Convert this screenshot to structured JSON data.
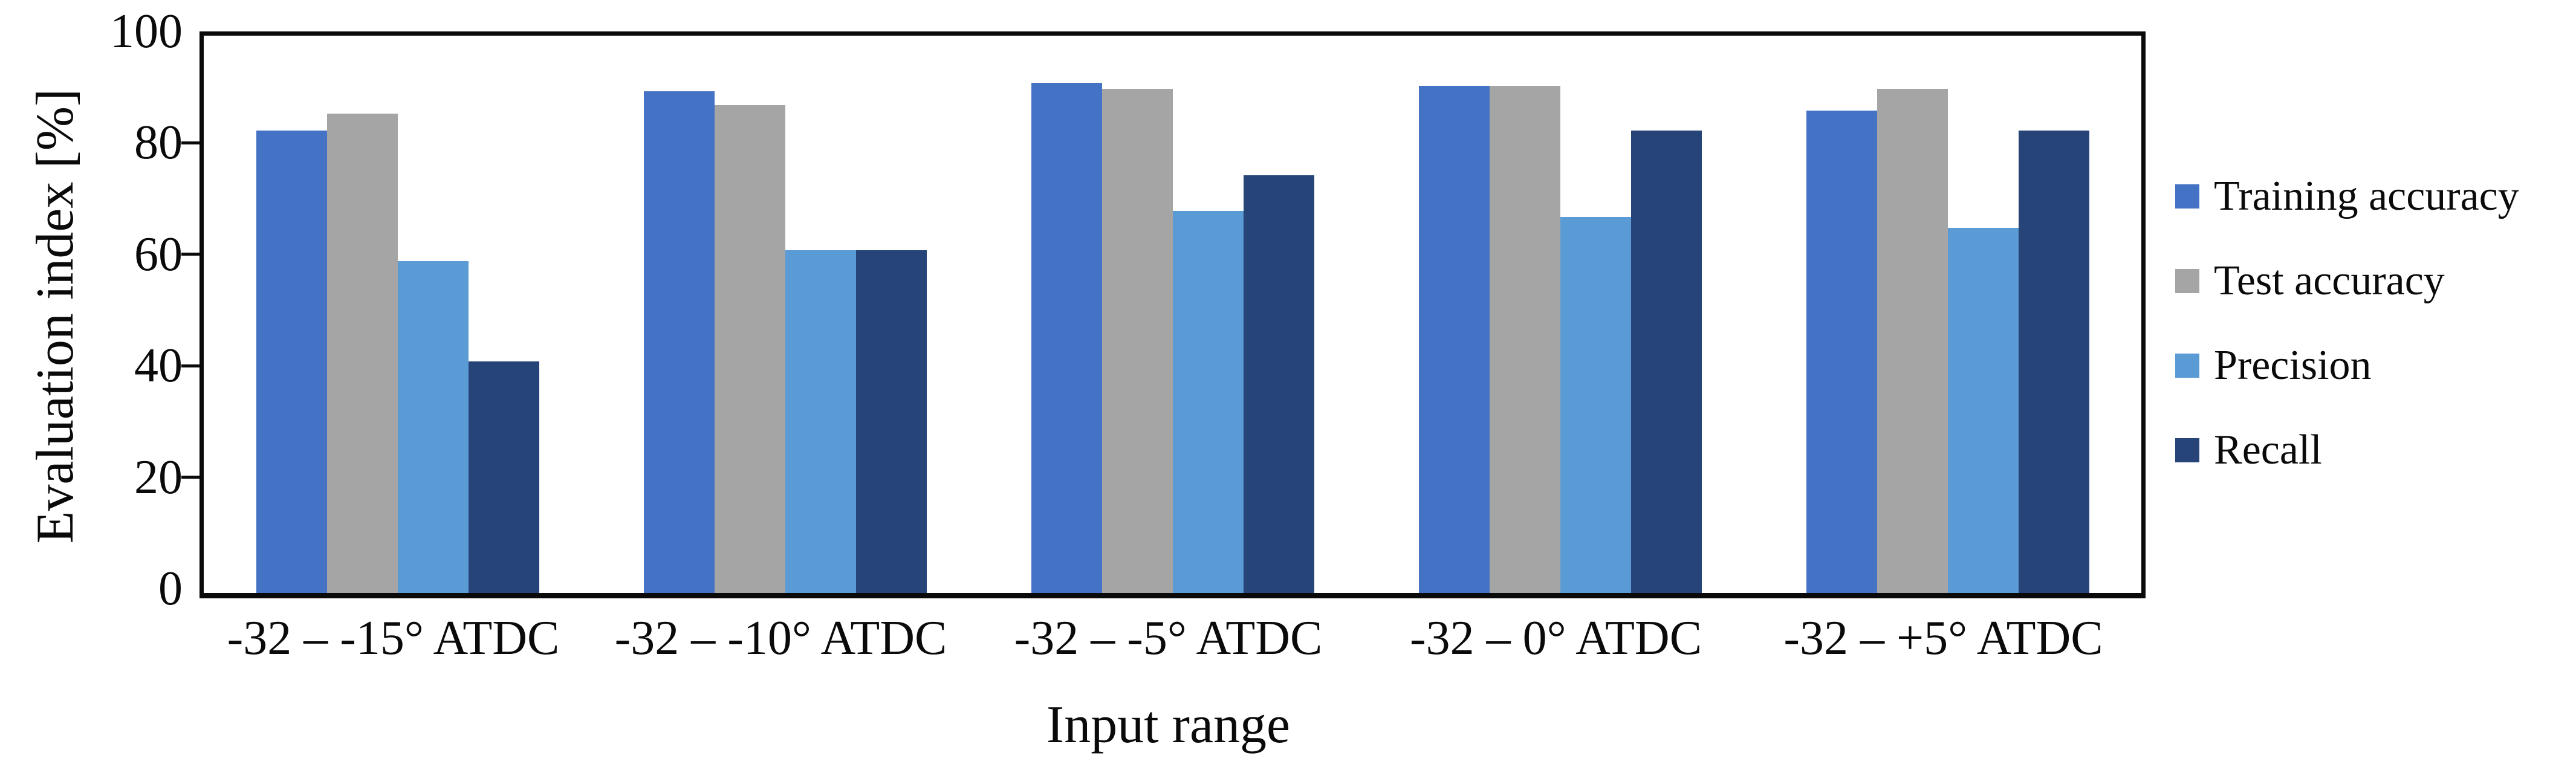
{
  "figure": {
    "background": "#ffffff",
    "text_color": "#0a0a0a"
  },
  "chart_data": {
    "type": "bar",
    "title": "",
    "xlabel": "Input range",
    "ylabel": "Evaluation index [%]",
    "ylim": [
      0,
      100
    ],
    "yticks": [
      0,
      20,
      40,
      60,
      80,
      100
    ],
    "grid": false,
    "legend_position": "right",
    "categories": [
      "-32 – -15° ATDC",
      "-32 – -10° ATDC",
      "-32 – -5° ATDC",
      "-32 – 0° ATDC",
      "-32 – +5° ATDC"
    ],
    "series": [
      {
        "name": "Training accuracy",
        "color": "#4472C4",
        "values": [
          83,
          90,
          91.5,
          91,
          86.5
        ]
      },
      {
        "name": "Test accuracy",
        "color": "#A5A5A5",
        "values": [
          86,
          87.5,
          90.5,
          91,
          90.5
        ]
      },
      {
        "name": "Precision",
        "color": "#5B9BD5",
        "values": [
          59.5,
          61.5,
          68.5,
          67.5,
          65.5
        ]
      },
      {
        "name": "Recall",
        "color": "#264478",
        "values": [
          41.5,
          61.5,
          75,
          83,
          83
        ]
      }
    ]
  }
}
